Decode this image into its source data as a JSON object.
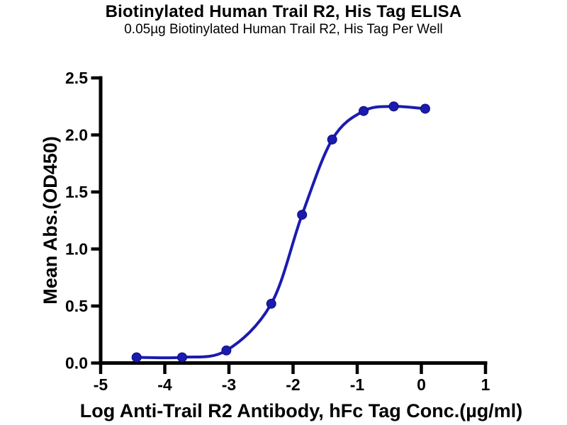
{
  "page": {
    "title": "Biotinylated Human Trail R2, His Tag ELISA",
    "subtitle": "0.05µg Biotinylated Human Trail R2, His Tag Per Well"
  },
  "chart_data": {
    "type": "scatter",
    "curve": "sigmoidal-4PL-fit-line",
    "title": "Biotinylated Human Trail R2, His Tag ELISA",
    "subtitle": "0.05µg Biotinylated Human Trail R2, His Tag Per Well",
    "xlabel": "Log Anti-Trail R2 Antibody, hFc Tag Conc.(µg/ml)",
    "ylabel": "Mean Abs.(OD450)",
    "x": [
      -4.44,
      -3.73,
      -3.04,
      -2.34,
      -1.86,
      -1.39,
      -0.9,
      -0.43,
      0.06
    ],
    "y": [
      0.05,
      0.05,
      0.11,
      0.52,
      1.3,
      1.96,
      2.21,
      2.25,
      2.23
    ],
    "xlim": [
      -5,
      1
    ],
    "ylim": [
      0,
      2.5
    ],
    "x_tick_labels": [
      "-5",
      "-4",
      "-3",
      "-2",
      "-1",
      "0",
      "1"
    ],
    "x_tick_values": [
      -5,
      -4,
      -3,
      -2,
      -1,
      0,
      1
    ],
    "y_tick_labels": [
      "0.0",
      "0.5",
      "1.0",
      "1.5",
      "2.0",
      "2.5"
    ],
    "y_tick_values": [
      0,
      0.5,
      1,
      1.5,
      2,
      2.5
    ],
    "grid": false,
    "legend": null,
    "marker": "filled-circle",
    "colors": {
      "line": "#1b1bb0",
      "marker_fill": "#1b1bb0",
      "marker_edge": "#0d0d7a",
      "axis": "#000000",
      "text": "#000000"
    }
  }
}
